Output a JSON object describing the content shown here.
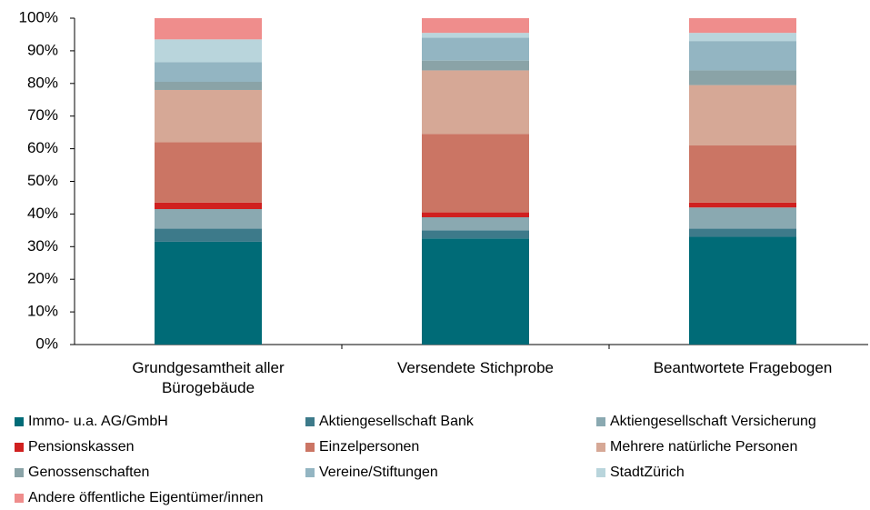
{
  "chart_data": {
    "type": "stacked_bar",
    "categories": [
      "Grundgesamtheit aller Bürogebäude",
      "Versendete Stichprobe",
      "Beantwortete Fragebogen"
    ],
    "series": [
      {
        "name": "Immo- u.a. AG/GmbH",
        "color": "#006b77",
        "values": [
          31.5,
          32.5,
          33
        ]
      },
      {
        "name": "Aktiengesellschaft Bank",
        "color": "#3d7a8a",
        "values": [
          4,
          2.5,
          2.5
        ]
      },
      {
        "name": "Aktiengesellschaft Versicherung",
        "color": "#8aa9b1",
        "values": [
          6,
          4,
          6.5
        ]
      },
      {
        "name": "Pensionskassen",
        "color": "#d0201f",
        "values": [
          2,
          1.5,
          1.5
        ]
      },
      {
        "name": "Einzelpersonen",
        "color": "#cb7564",
        "values": [
          18.5,
          24,
          17.5
        ]
      },
      {
        "name": "Mehrere natürliche Personen",
        "color": "#d6a896",
        "values": [
          16,
          19.5,
          18.5
        ]
      },
      {
        "name": "Genossenschaften",
        "color": "#8aa3a7",
        "values": [
          2.5,
          3,
          4.5
        ]
      },
      {
        "name": "Vereine/Stiftungen",
        "color": "#93b5c2",
        "values": [
          6,
          7,
          9
        ]
      },
      {
        "name": "StadtZürich",
        "color": "#b9d5dc",
        "values": [
          7,
          1.5,
          2.5
        ]
      },
      {
        "name": "Andere öffentliche Eigentümer/innen",
        "color": "#ef8d8c",
        "values": [
          6.5,
          4.5,
          4.5
        ]
      }
    ],
    "ylim": [
      0,
      100
    ],
    "yticks": [
      {
        "value": 0,
        "label": "0%"
      },
      {
        "value": 10,
        "label": "10%"
      },
      {
        "value": 20,
        "label": "20%"
      },
      {
        "value": 30,
        "label": "30%"
      },
      {
        "value": 40,
        "label": "40%"
      },
      {
        "value": 50,
        "label": "50%"
      },
      {
        "value": 60,
        "label": "60%"
      },
      {
        "value": 70,
        "label": "70%"
      },
      {
        "value": 80,
        "label": "80%"
      },
      {
        "value": 90,
        "label": "90%"
      },
      {
        "value": 100,
        "label": "100%"
      }
    ]
  }
}
